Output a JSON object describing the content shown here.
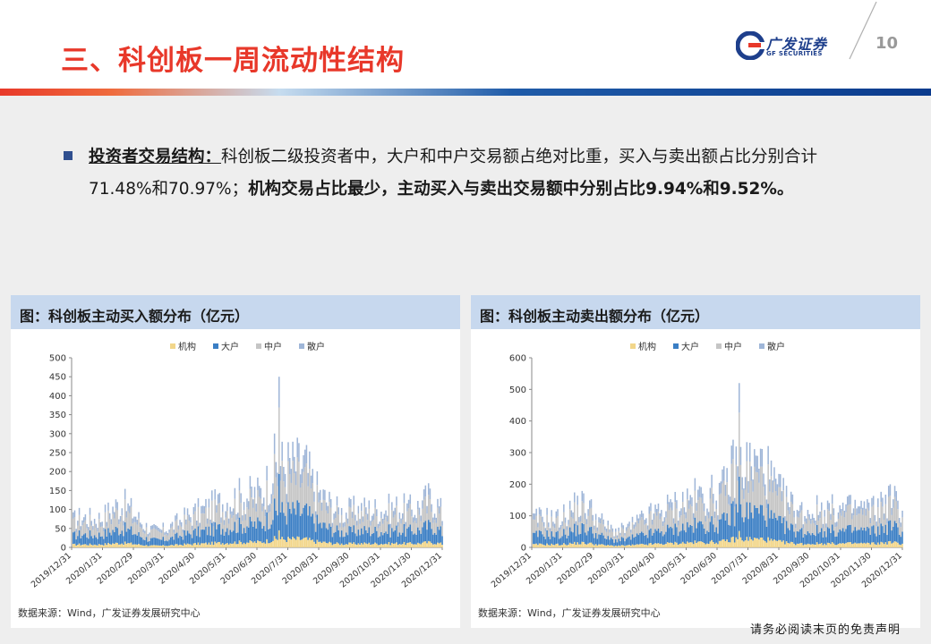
{
  "header": {
    "title": "三、科创板一周流动性结构",
    "page_number": "10",
    "logo_cn": "广发证券",
    "logo_en": "GF SECURITIES"
  },
  "body": {
    "lead": "投资者交易结构：",
    "text1": "科创板二级投资者中，大户和中户交易额占绝对比重，买入与卖出额占比分别合计71.48%和70.97%；",
    "text2": "机构交易占比最少，主动买入与卖出交易额中分别占比9.94%和9.52%。"
  },
  "footer": {
    "disclaimer": "请务必阅读末页的免责声明"
  },
  "colors": {
    "institution": "#f2d68a",
    "large": "#3a7ec4",
    "medium": "#c5c5c5",
    "retail": "#9fb6d8"
  },
  "chart_data": [
    {
      "type": "bar",
      "title": "图：科创板主动买入额分布（亿元）",
      "source": "数据来源：Wind，广发证券发展研究中心",
      "legend": [
        "机构",
        "大户",
        "中户",
        "散户"
      ],
      "legend_position": "top",
      "stacked": true,
      "ylim": [
        0,
        500
      ],
      "yticks": [
        0,
        50,
        100,
        150,
        200,
        250,
        300,
        350,
        400,
        450,
        500
      ],
      "xticks": [
        "2019/12/31",
        "2020/1/31",
        "2020/2/29",
        "2020/3/31",
        "2020/4/30",
        "2020/5/31",
        "2020/6/30",
        "2020/7/31",
        "2020/8/31",
        "2020/9/30",
        "2020/10/31",
        "2020/11/30",
        "2020/12/31"
      ],
      "x_range": [
        "2019/12/31",
        "2020/12/31"
      ],
      "peak": {
        "date": "2020/7/22",
        "total": 450
      },
      "grid": false
    },
    {
      "type": "bar",
      "title": "图：科创板主动卖出额分布（亿元）",
      "source": "数据来源：Wind，广发证券发展研究中心",
      "legend": [
        "机构",
        "大户",
        "中户",
        "散户"
      ],
      "legend_position": "top",
      "stacked": true,
      "ylim": [
        0,
        600
      ],
      "yticks": [
        0,
        100,
        200,
        300,
        400,
        500,
        600
      ],
      "xticks": [
        "2019/12/31",
        "2020/1/31",
        "2020/2/29",
        "2020/3/31",
        "2020/4/30",
        "2020/5/31",
        "2020/6/30",
        "2020/7/31",
        "2020/8/31",
        "2020/9/30",
        "2020/10/31",
        "2020/11/30",
        "2020/12/31"
      ],
      "x_range": [
        "2019/12/31",
        "2020/12/31"
      ],
      "peak": {
        "date": "2020/7/22",
        "total": 520
      },
      "grid": false
    }
  ]
}
